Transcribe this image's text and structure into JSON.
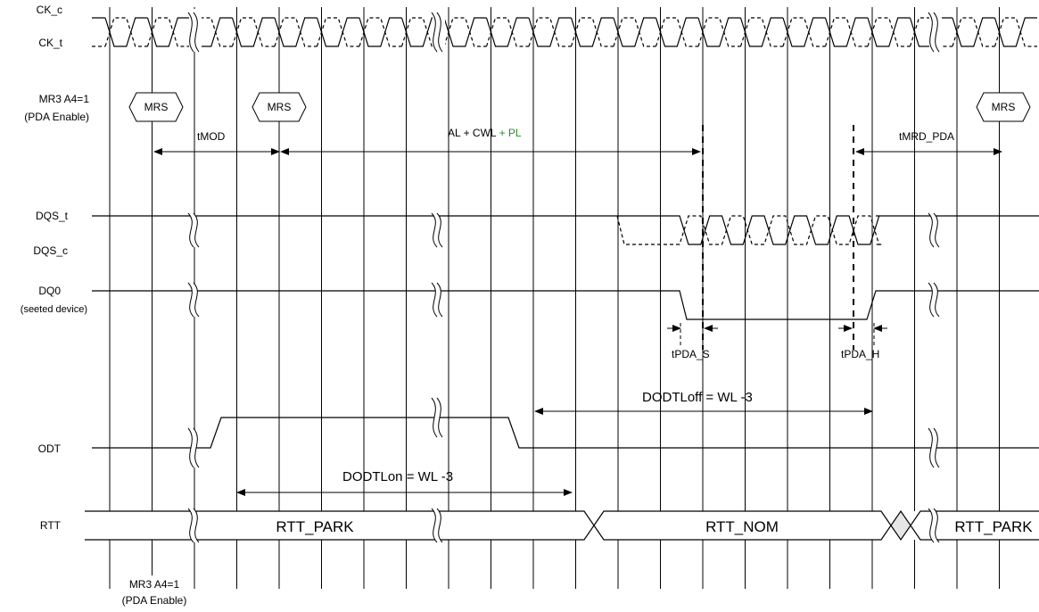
{
  "signals": {
    "ck_c": "CK_c",
    "ck_t": "CK_t",
    "mr3_line1": "MR3 A4=1",
    "mr3_line2": "(PDA Enable)",
    "dqs_t": "DQS_t",
    "dqs_c": "DQS_c",
    "dq0": "DQ0",
    "dq0_sub": "(seeted device)",
    "odt": "ODT",
    "rtt": "RTT",
    "bottom_line1": "MR3 A4=1",
    "bottom_line2": "(PDA Enable)"
  },
  "commands": {
    "mrs_1": "MRS",
    "mrs_2": "MRS",
    "mrs_3": "MRS"
  },
  "timing": {
    "tmod": "tMOD",
    "al_cwl": "AL + CWL",
    "pl": "+ PL",
    "tmrd_pda": "tMRD_PDA",
    "tpda_s": "tPDA_S",
    "tpda_h": "tPDA_H",
    "dodtloff": "DODTLoff = WL -3",
    "dodtlon": "DODTLon = WL -3"
  },
  "rtt_states": {
    "park_1": "RTT_PARK",
    "nom": "RTT_NOM",
    "park_2": "RTT_PARK"
  },
  "colors": {
    "line": "#000000",
    "pl_highlight": "#2e8b2e",
    "background": "#ffffff"
  }
}
